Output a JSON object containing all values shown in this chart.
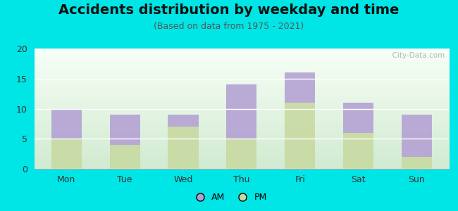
{
  "title": "Accidents distribution by weekday and time",
  "subtitle": "(Based on data from 1975 - 2021)",
  "categories": [
    "Mon",
    "Tue",
    "Wed",
    "Thu",
    "Fri",
    "Sat",
    "Sun"
  ],
  "pm_values": [
    5,
    4,
    7,
    5,
    11,
    6,
    2
  ],
  "am_values": [
    5,
    5,
    2,
    9,
    5,
    5,
    7
  ],
  "am_color": "#b3a0d4",
  "pm_color": "#c8d9a0",
  "ylim": [
    0,
    20
  ],
  "yticks": [
    0,
    5,
    10,
    15,
    20
  ],
  "background_color": "#00e5e5",
  "title_fontsize": 14,
  "subtitle_fontsize": 9,
  "tick_fontsize": 9,
  "legend_fontsize": 9,
  "watermark_text": "  City-Data.com"
}
